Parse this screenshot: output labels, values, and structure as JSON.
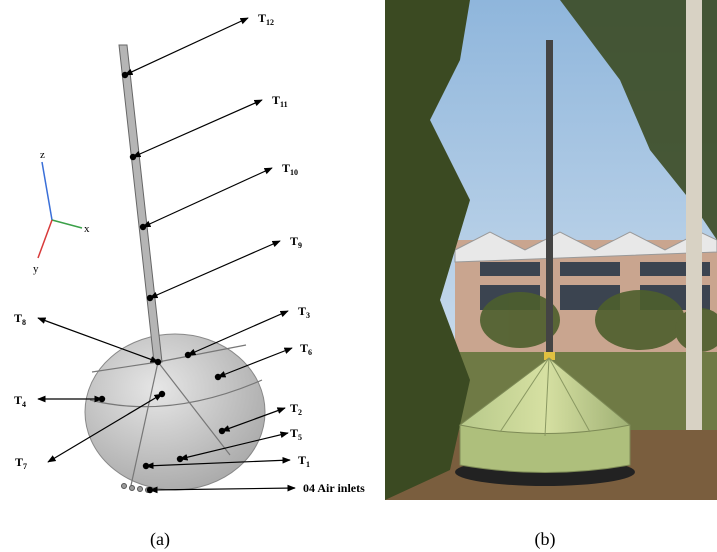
{
  "figure": {
    "panel_a": {
      "axes": {
        "z": "z",
        "x": "x",
        "y": "y"
      },
      "sensors": [
        {
          "letter": "T",
          "index": "12"
        },
        {
          "letter": "T",
          "index": "11"
        },
        {
          "letter": "T",
          "index": "10"
        },
        {
          "letter": "T",
          "index": "9"
        },
        {
          "letter": "T",
          "index": "8"
        },
        {
          "letter": "T",
          "index": "3"
        },
        {
          "letter": "T",
          "index": "6"
        },
        {
          "letter": "T",
          "index": "4"
        },
        {
          "letter": "T",
          "index": "7"
        },
        {
          "letter": "T",
          "index": "2"
        },
        {
          "letter": "T",
          "index": "5"
        },
        {
          "letter": "T",
          "index": "1"
        }
      ],
      "air_inlets": "04 Air inlets",
      "caption": "(a)"
    },
    "panel_b": {
      "caption": "(b)"
    }
  }
}
